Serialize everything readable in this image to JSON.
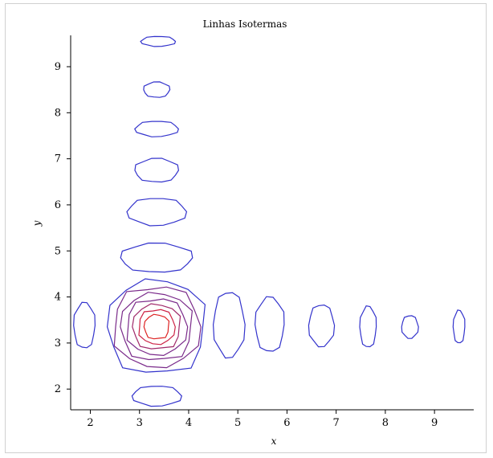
{
  "chart_data": {
    "type": "contour",
    "title": "Linhas Isotermas",
    "xlabel": "x",
    "ylabel": "y",
    "xlim": [
      1.6,
      9.7
    ],
    "ylim": [
      1.55,
      9.75
    ],
    "xticks": [
      2,
      3,
      4,
      5,
      6,
      7,
      8,
      9
    ],
    "yticks": [
      2,
      3,
      4,
      5,
      6,
      7,
      8,
      9
    ],
    "grid": false,
    "colors": {
      "outer": "#3333cc",
      "mid": "#7a2a8a",
      "inner": "#dd2222"
    },
    "central_peak": {
      "center": [
        3.35,
        3.35
      ],
      "levels": [
        {
          "rx": 0.98,
          "ry": 1.0,
          "color": "#3333cc"
        },
        {
          "rx": 0.86,
          "ry": 0.86,
          "color": "#7a2a8a"
        },
        {
          "rx": 0.72,
          "ry": 0.72,
          "color": "#7a2a8a"
        },
        {
          "rx": 0.6,
          "ry": 0.6,
          "color": "#7a2a8a"
        },
        {
          "rx": 0.48,
          "ry": 0.48,
          "color": "#a02a6a"
        },
        {
          "rx": 0.36,
          "ry": 0.37,
          "color": "#cc2244"
        },
        {
          "rx": 0.25,
          "ry": 0.26,
          "color": "#dd2222"
        }
      ]
    },
    "contours": [
      {
        "cx": 3.38,
        "cy": 9.55,
        "rx": 0.35,
        "ry": 0.11
      },
      {
        "cx": 3.35,
        "cy": 8.5,
        "rx": 0.27,
        "ry": 0.17
      },
      {
        "cx": 3.35,
        "cy": 7.65,
        "rx": 0.44,
        "ry": 0.17
      },
      {
        "cx": 3.35,
        "cy": 6.75,
        "rx": 0.45,
        "ry": 0.26
      },
      {
        "cx": 3.35,
        "cy": 5.85,
        "rx": 0.6,
        "ry": 0.3
      },
      {
        "cx": 3.35,
        "cy": 4.85,
        "rx": 0.74,
        "ry": 0.32
      },
      {
        "cx": 3.35,
        "cy": 1.85,
        "rx": 0.5,
        "ry": 0.22
      },
      {
        "cx": 1.88,
        "cy": 3.38,
        "rx": 0.22,
        "ry": 0.5
      },
      {
        "cx": 4.82,
        "cy": 3.4,
        "rx": 0.32,
        "ry": 0.72
      },
      {
        "cx": 5.65,
        "cy": 3.4,
        "rx": 0.3,
        "ry": 0.6
      },
      {
        "cx": 6.7,
        "cy": 3.38,
        "rx": 0.26,
        "ry": 0.46
      },
      {
        "cx": 7.65,
        "cy": 3.35,
        "rx": 0.17,
        "ry": 0.45
      },
      {
        "cx": 8.5,
        "cy": 3.35,
        "rx": 0.17,
        "ry": 0.25
      },
      {
        "cx": 9.5,
        "cy": 3.35,
        "rx": 0.12,
        "ry": 0.36
      }
    ]
  }
}
